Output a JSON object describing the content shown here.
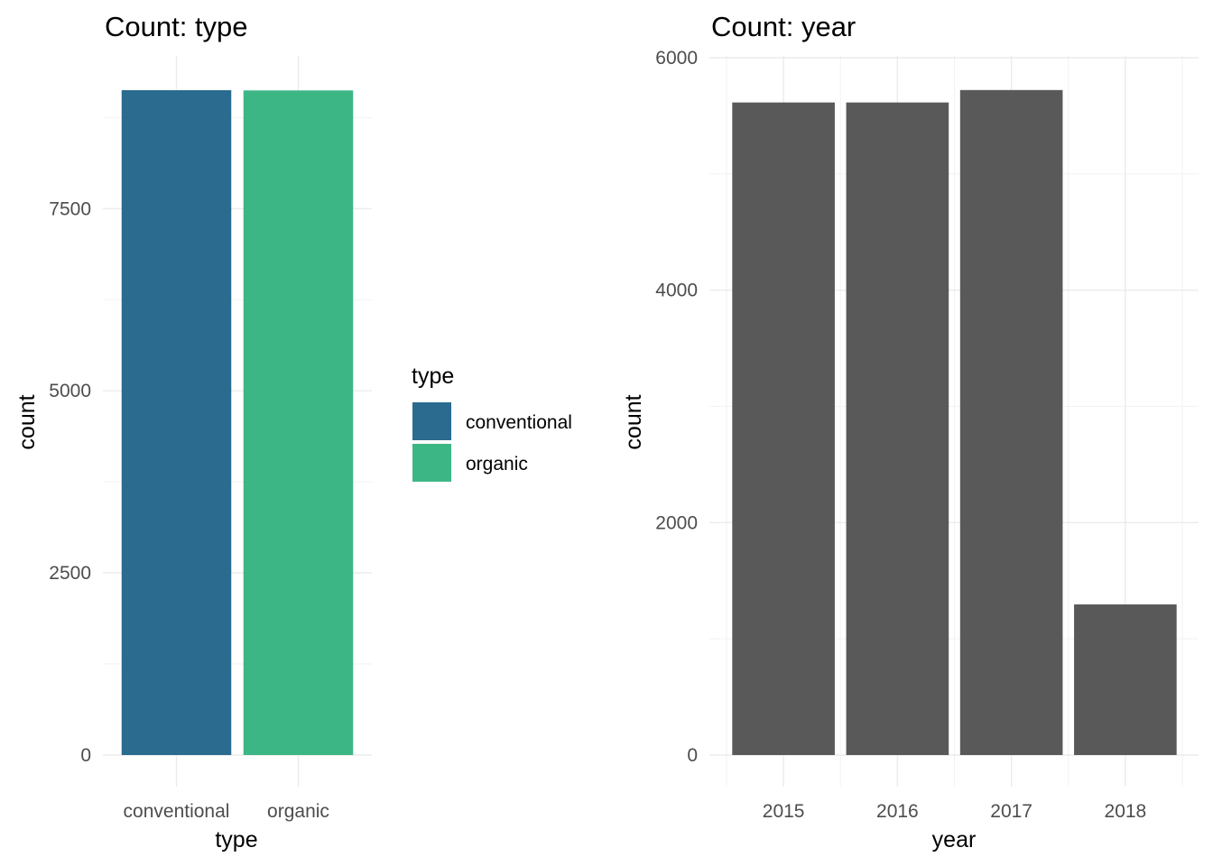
{
  "chart_data": [
    {
      "type": "bar",
      "title": "Count: type",
      "xlabel": "type",
      "ylabel": "count",
      "categories": [
        "conventional",
        "organic"
      ],
      "values": [
        9126,
        9123
      ],
      "colors": [
        "#2a6b8f",
        "#3db686"
      ],
      "ylim": [
        0,
        9126
      ],
      "yticks": [
        0,
        2500,
        5000,
        7500
      ],
      "grid": true,
      "legend": {
        "title": "type",
        "placement": "right",
        "entries": [
          "conventional",
          "organic"
        ]
      }
    },
    {
      "type": "bar",
      "title": "Count: year",
      "xlabel": "year",
      "ylabel": "count",
      "categories": [
        "2015",
        "2016",
        "2017",
        "2018"
      ],
      "values": [
        5615,
        5615,
        5722,
        1296
      ],
      "colors": [
        "#595959"
      ],
      "ylim": [
        0,
        6000
      ],
      "yticks": [
        0,
        2000,
        4000,
        6000
      ],
      "grid": true
    }
  ]
}
